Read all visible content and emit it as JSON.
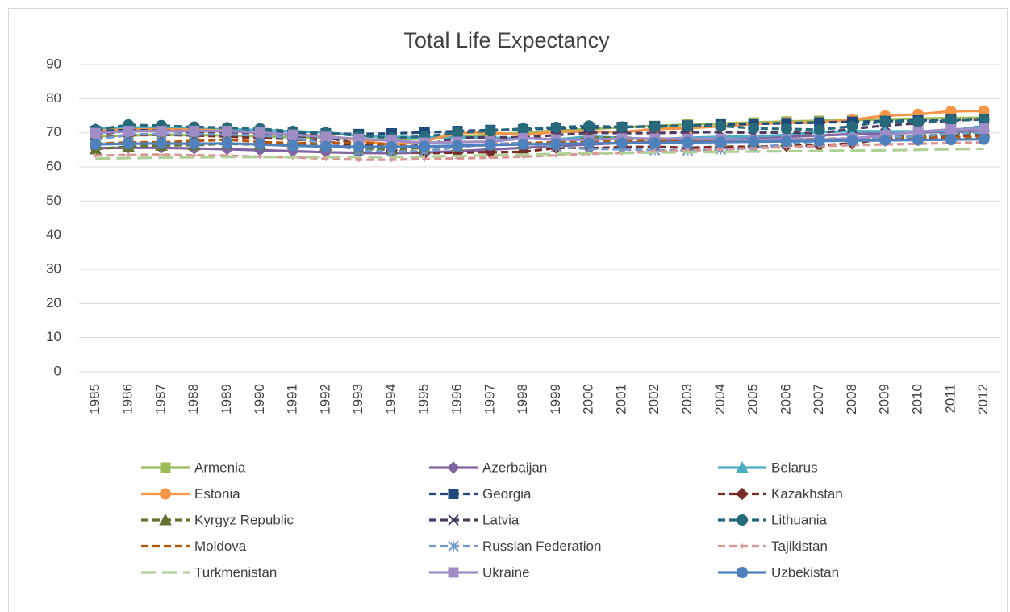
{
  "chart_data": {
    "type": "line",
    "title": "Total Life Expectancy",
    "categories": [
      "1985",
      "1986",
      "1987",
      "1988",
      "1989",
      "1990",
      "1991",
      "1992",
      "1993",
      "1994",
      "1995",
      "1996",
      "1997",
      "1998",
      "1999",
      "2000",
      "2001",
      "2002",
      "2003",
      "2004",
      "2005",
      "2006",
      "2007",
      "2008",
      "2009",
      "2010",
      "2011",
      "2012"
    ],
    "ylim": [
      0,
      90
    ],
    "yticks": [
      0,
      10,
      20,
      30,
      40,
      50,
      60,
      70,
      80,
      90
    ],
    "grid": true,
    "series": [
      {
        "name": "Armenia",
        "color": "#9bbb59",
        "dash": "solid",
        "marker": "square",
        "values": [
          69,
          69.2,
          69.4,
          69.3,
          69.2,
          68.9,
          68.7,
          68.4,
          68.1,
          68.0,
          68.3,
          68.8,
          69.4,
          70.0,
          70.6,
          71.1,
          71.6,
          72.0,
          72.4,
          72.7,
          73.0,
          73.3,
          73.5,
          73.7,
          73.9,
          74.1,
          74.3,
          74.4
        ]
      },
      {
        "name": "Azerbaijan",
        "color": "#8064a2",
        "dash": "solid",
        "marker": "diamond",
        "values": [
          65.5,
          65.6,
          65.6,
          65.4,
          65.2,
          64.9,
          64.6,
          64.3,
          64.1,
          64.0,
          64.2,
          64.6,
          65.1,
          65.6,
          66.1,
          66.6,
          67.0,
          67.4,
          67.8,
          68.1,
          68.4,
          68.8,
          69.2,
          69.6,
          69.9,
          70.1,
          70.3,
          70.5
        ]
      },
      {
        "name": "Belarus",
        "color": "#4bacc6",
        "dash": "solid",
        "marker": "triangle",
        "values": [
          71.1,
          71.6,
          71.4,
          71.1,
          71.0,
          70.8,
          70.4,
          70.1,
          69.1,
          68.8,
          68.6,
          68.7,
          68.5,
          68.4,
          68.0,
          68.9,
          68.5,
          68.1,
          68.5,
          68.8,
          68.9,
          69.4,
          70.2,
          70.5,
          70.4,
          70.4,
          70.6,
          72.0
        ]
      },
      {
        "name": "Estonia",
        "color": "#f79646",
        "dash": "solid",
        "marker": "circle",
        "values": [
          70.6,
          71.0,
          71.0,
          70.9,
          70.6,
          69.9,
          69.4,
          69.1,
          67.8,
          66.5,
          67.5,
          69.9,
          70.1,
          69.3,
          70.3,
          70.4,
          70.2,
          71.1,
          71.3,
          71.9,
          72.6,
          72.9,
          73.0,
          73.8,
          75.0,
          75.4,
          76.3,
          76.4
        ]
      },
      {
        "name": "Georgia",
        "color": "#1f497d",
        "dash": "dash",
        "marker": "square",
        "values": [
          70.5,
          70.8,
          70.6,
          70.5,
          70.5,
          70.3,
          70.0,
          69.8,
          69.6,
          69.8,
          70.1,
          70.5,
          70.8,
          71.0,
          71.3,
          71.5,
          71.7,
          71.9,
          72.1,
          72.4,
          72.6,
          72.8,
          73.0,
          73.2,
          73.4,
          73.6,
          73.8,
          74.0
        ]
      },
      {
        "name": "Kazakhstan",
        "color": "#772c2a",
        "dash": "dash",
        "marker": "diamond",
        "values": [
          68.3,
          69.3,
          69.4,
          69.2,
          68.9,
          68.5,
          68.1,
          67.5,
          65.9,
          64.9,
          64.0,
          64.2,
          64.3,
          64.4,
          65.6,
          65.5,
          65.8,
          65.9,
          65.6,
          65.9,
          65.9,
          66.2,
          66.3,
          66.9,
          68.2,
          68.3,
          68.9,
          69.3
        ]
      },
      {
        "name": "Kyrgyz Republic",
        "color": "#5f7530",
        "dash": "dash",
        "marker": "triangle",
        "values": [
          65.2,
          66.0,
          66.3,
          66.4,
          66.8,
          66.5,
          66.8,
          66.3,
          65.4,
          65.2,
          65.6,
          66.1,
          66.6,
          66.7,
          67.2,
          68.5,
          68.6,
          68.0,
          68.1,
          67.9,
          67.6,
          67.6,
          67.8,
          68.0,
          68.9,
          69.2,
          69.4,
          70.0
        ]
      },
      {
        "name": "Latvia",
        "color": "#4d3b62",
        "dash": "dash",
        "marker": "x",
        "values": [
          69.4,
          70.6,
          70.6,
          70.2,
          70.1,
          69.3,
          69.0,
          68.6,
          66.8,
          65.7,
          66.4,
          68.5,
          68.7,
          68.6,
          69.3,
          70.0,
          69.9,
          69.9,
          70.1,
          70.2,
          70.0,
          70.1,
          69.8,
          71.2,
          72.1,
          72.8,
          73.6,
          73.9
        ]
      },
      {
        "name": "Lithuania",
        "color": "#276a7c",
        "dash": "dash",
        "marker": "circle",
        "values": [
          70.9,
          72.3,
          72.1,
          71.7,
          71.5,
          71.2,
          70.4,
          70.0,
          69.1,
          68.5,
          68.9,
          70.0,
          70.6,
          71.2,
          71.6,
          72.0,
          71.7,
          71.8,
          72.1,
          72.0,
          71.3,
          71.1,
          70.9,
          71.9,
          73.4,
          73.3,
          73.6,
          73.9
        ]
      },
      {
        "name": "Moldova",
        "color": "#b65708",
        "dash": "dash",
        "marker": "none",
        "values": [
          66.8,
          67.2,
          67.2,
          67.6,
          68.0,
          67.3,
          67.0,
          66.9,
          67.2,
          66.6,
          65.5,
          66.1,
          66.6,
          67.0,
          67.2,
          67.4,
          67.5,
          67.6,
          67.8,
          67.9,
          68.0,
          68.0,
          68.2,
          68.3,
          68.4,
          68.5,
          68.6,
          68.8
        ]
      },
      {
        "name": "Russian Federation",
        "color": "#729aca",
        "dash": "dash",
        "marker": "star",
        "values": [
          67.9,
          69.5,
          69.5,
          69.5,
          69.5,
          69.2,
          68.5,
          66.9,
          64.9,
          64.5,
          64.6,
          65.8,
          66.7,
          67.0,
          65.9,
          65.3,
          65.2,
          64.9,
          64.8,
          65.1,
          65.5,
          66.7,
          67.6,
          67.9,
          68.8,
          68.8,
          69.8,
          70.1
        ]
      },
      {
        "name": "Tajikistan",
        "color": "#d99694",
        "dash": "dash",
        "marker": "plus",
        "values": [
          63.3,
          63.5,
          63.6,
          63.4,
          63.3,
          63.0,
          62.8,
          62.4,
          62.1,
          62.1,
          62.3,
          62.5,
          62.7,
          63.0,
          63.4,
          63.8,
          64.1,
          64.5,
          64.8,
          65.2,
          65.5,
          65.8,
          66.1,
          66.4,
          66.6,
          66.8,
          67.0,
          67.2
        ]
      },
      {
        "name": "Turkmenistan",
        "color": "#afd095",
        "dash": "longdash",
        "marker": "none",
        "values": [
          62.4,
          62.6,
          62.7,
          62.8,
          62.9,
          62.9,
          62.9,
          62.9,
          62.9,
          62.9,
          63.0,
          63.2,
          63.4,
          63.6,
          63.8,
          64.0,
          64.1,
          64.2,
          64.3,
          64.4,
          64.5,
          64.6,
          64.7,
          64.8,
          64.9,
          65.0,
          65.2,
          65.3
        ]
      },
      {
        "name": "Ukraine",
        "color": "#a18dc6",
        "dash": "solid",
        "marker": "square",
        "values": [
          69.9,
          70.5,
          70.5,
          70.5,
          70.5,
          70.1,
          69.4,
          68.8,
          68.2,
          67.7,
          67.1,
          67.3,
          67.4,
          68.4,
          68.0,
          67.9,
          68.3,
          68.3,
          68.2,
          68.2,
          67.9,
          68.1,
          68.0,
          68.3,
          69.3,
          70.3,
          71.0,
          71.2
        ]
      },
      {
        "name": "Uzbekistan",
        "color": "#4f81bd",
        "dash": "solid",
        "marker": "circle",
        "values": [
          66.6,
          66.8,
          66.9,
          66.8,
          66.9,
          66.6,
          66.2,
          66.0,
          65.9,
          65.9,
          66.0,
          66.2,
          66.4,
          66.6,
          66.8,
          66.9,
          67.0,
          67.1,
          67.2,
          67.3,
          67.4,
          67.5,
          67.6,
          67.7,
          67.8,
          67.9,
          68.0,
          68.1
        ]
      }
    ]
  }
}
